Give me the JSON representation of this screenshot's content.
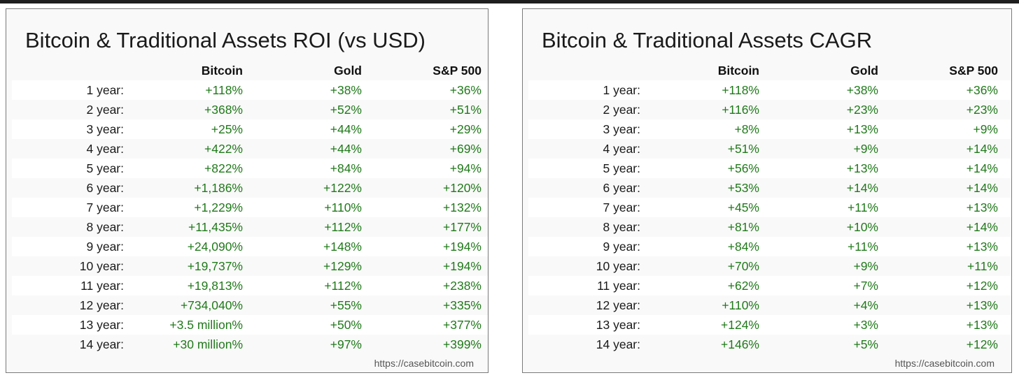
{
  "chart_data": [
    {
      "type": "table",
      "title": "Bitcoin & Traditional Assets ROI (vs USD)",
      "columns": [
        "",
        "Bitcoin",
        "Gold",
        "S&P 500"
      ],
      "rows": [
        [
          "1 year:",
          "+118%",
          "+38%",
          "+36%"
        ],
        [
          "2 year:",
          "+368%",
          "+52%",
          "+51%"
        ],
        [
          "3 year:",
          "+25%",
          "+44%",
          "+29%"
        ],
        [
          "4 year:",
          "+422%",
          "+44%",
          "+69%"
        ],
        [
          "5 year:",
          "+822%",
          "+84%",
          "+94%"
        ],
        [
          "6 year:",
          "+1,186%",
          "+122%",
          "+120%"
        ],
        [
          "7 year:",
          "+1,229%",
          "+110%",
          "+132%"
        ],
        [
          "8 year:",
          "+11,435%",
          "+112%",
          "+177%"
        ],
        [
          "9 year:",
          "+24,090%",
          "+148%",
          "+194%"
        ],
        [
          "10 year:",
          "+19,737%",
          "+129%",
          "+194%"
        ],
        [
          "11 year:",
          "+19,813%",
          "+112%",
          "+238%"
        ],
        [
          "12 year:",
          "+734,040%",
          "+55%",
          "+335%"
        ],
        [
          "13 year:",
          "+3.5 million%",
          "+50%",
          "+377%"
        ],
        [
          "14 year:",
          "+30 million%",
          "+97%",
          "+399%"
        ]
      ],
      "source": "https://casebitcoin.com",
      "value_color": "#207a1a"
    },
    {
      "type": "table",
      "title": "Bitcoin & Traditional Assets CAGR",
      "columns": [
        "",
        "Bitcoin",
        "Gold",
        "S&P 500"
      ],
      "rows": [
        [
          "1 year:",
          "+118%",
          "+38%",
          "+36%"
        ],
        [
          "2 year:",
          "+116%",
          "+23%",
          "+23%"
        ],
        [
          "3 year:",
          "+8%",
          "+13%",
          "+9%"
        ],
        [
          "4 year:",
          "+51%",
          "+9%",
          "+14%"
        ],
        [
          "5 year:",
          "+56%",
          "+13%",
          "+14%"
        ],
        [
          "6 year:",
          "+53%",
          "+14%",
          "+14%"
        ],
        [
          "7 year:",
          "+45%",
          "+11%",
          "+13%"
        ],
        [
          "8 year:",
          "+81%",
          "+10%",
          "+14%"
        ],
        [
          "9 year:",
          "+84%",
          "+11%",
          "+13%"
        ],
        [
          "10 year:",
          "+70%",
          "+9%",
          "+11%"
        ],
        [
          "11 year:",
          "+62%",
          "+7%",
          "+12%"
        ],
        [
          "12 year:",
          "+110%",
          "+4%",
          "+13%"
        ],
        [
          "13 year:",
          "+124%",
          "+3%",
          "+13%"
        ],
        [
          "14 year:",
          "+146%",
          "+5%",
          "+12%"
        ]
      ],
      "source": "https://casebitcoin.com",
      "value_color": "#207a1a"
    }
  ]
}
